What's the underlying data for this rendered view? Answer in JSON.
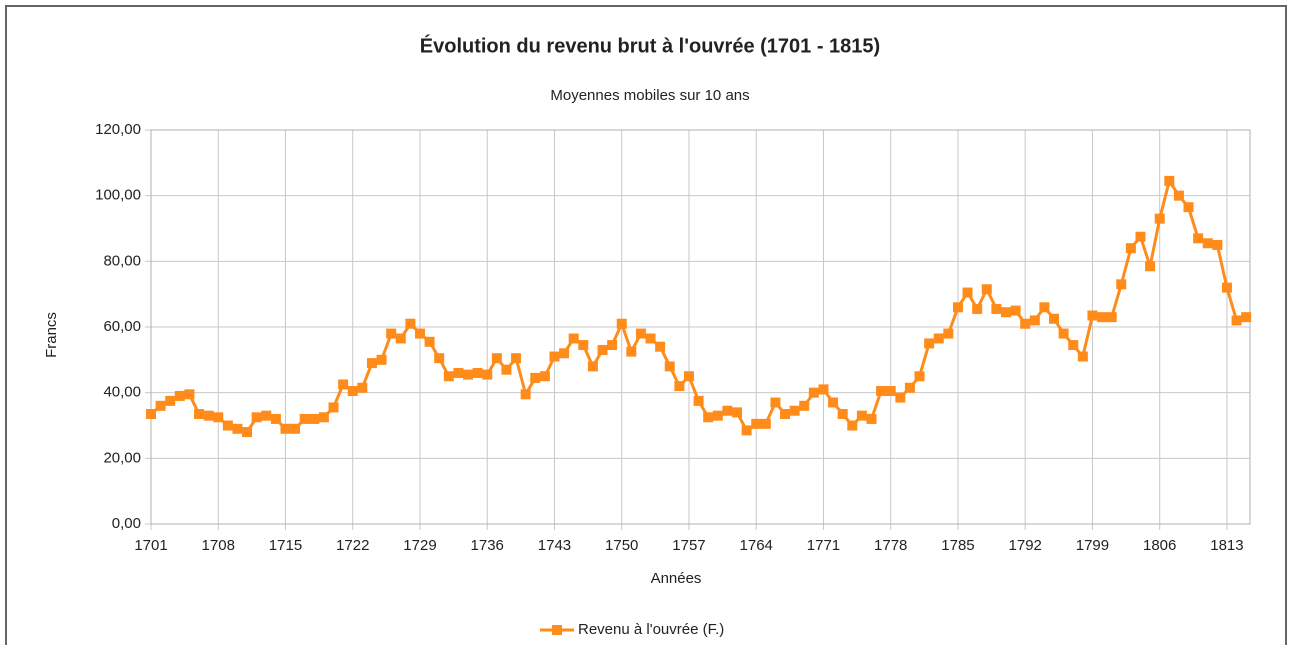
{
  "chart_data": {
    "type": "line",
    "title": "Évolution du revenu brut à l'ouvrée (1701 - 1815)",
    "subtitle": "Moyennes mobiles sur 10 ans",
    "x_label": "Années",
    "y_label": "Francs",
    "x": [
      1701,
      1702,
      1703,
      1704,
      1705,
      1706,
      1707,
      1708,
      1709,
      1710,
      1711,
      1712,
      1713,
      1714,
      1715,
      1716,
      1717,
      1718,
      1719,
      1720,
      1721,
      1722,
      1723,
      1724,
      1725,
      1726,
      1727,
      1728,
      1729,
      1730,
      1731,
      1732,
      1733,
      1734,
      1735,
      1736,
      1737,
      1738,
      1739,
      1740,
      1741,
      1742,
      1743,
      1744,
      1745,
      1746,
      1747,
      1748,
      1749,
      1750,
      1751,
      1752,
      1753,
      1754,
      1755,
      1756,
      1757,
      1758,
      1759,
      1760,
      1761,
      1762,
      1763,
      1764,
      1765,
      1766,
      1767,
      1768,
      1769,
      1770,
      1771,
      1772,
      1773,
      1774,
      1775,
      1776,
      1777,
      1778,
      1779,
      1780,
      1781,
      1782,
      1783,
      1784,
      1785,
      1786,
      1787,
      1788,
      1789,
      1790,
      1791,
      1792,
      1793,
      1794,
      1795,
      1796,
      1797,
      1798,
      1799,
      1800,
      1801,
      1802,
      1803,
      1804,
      1805,
      1806,
      1807,
      1808,
      1809,
      1810,
      1811,
      1812,
      1813,
      1814,
      1815
    ],
    "series": [
      {
        "name": "Revenu à l'ouvrée (F.)",
        "color": "#ff8c1a",
        "values": [
          33.5,
          36,
          37.5,
          39,
          39.5,
          33.5,
          33,
          32.5,
          30,
          29,
          28,
          32.5,
          33,
          32,
          29,
          29,
          32,
          32,
          32.5,
          35.5,
          42.5,
          40.5,
          41.5,
          49,
          50,
          58,
          56.5,
          61,
          58,
          55.5,
          50.5,
          45,
          46,
          45.5,
          46,
          45.5,
          50.5,
          47,
          50.5,
          39.5,
          44.5,
          45,
          51,
          52,
          56.5,
          54.5,
          48,
          53,
          54.5,
          61,
          52.5,
          58,
          56.5,
          54,
          48,
          42,
          45,
          37.5,
          32.5,
          33,
          34.5,
          34,
          28.5,
          30.5,
          30.5,
          37,
          33.5,
          34.5,
          36,
          40,
          41,
          37,
          33.5,
          30,
          33,
          32,
          40.5,
          40.5,
          38.5,
          41.5,
          45,
          55,
          56.5,
          58,
          66,
          70.5,
          65.5,
          71.5,
          65.5,
          64.5,
          65,
          61,
          62,
          66,
          62.5,
          58,
          54.5,
          51,
          63.5,
          63,
          63,
          73,
          84,
          87.5,
          78.5,
          93,
          104.5,
          100,
          96.5,
          87,
          85.5,
          85,
          72,
          62,
          63
        ]
      }
    ],
    "xlim": [
      1701,
      1815.4
    ],
    "xticks": [
      1701,
      1708,
      1715,
      1722,
      1729,
      1736,
      1743,
      1750,
      1757,
      1764,
      1771,
      1778,
      1785,
      1792,
      1799,
      1806,
      1813
    ],
    "ylim": [
      0,
      120
    ],
    "yticks": [
      {
        "value": 0,
        "label": "0,00"
      },
      {
        "value": 20,
        "label": "20,00"
      },
      {
        "value": 40,
        "label": "40,00"
      },
      {
        "value": 60,
        "label": "60,00"
      },
      {
        "value": 80,
        "label": "80,00"
      },
      {
        "value": 100,
        "label": "100,00"
      },
      {
        "value": 120,
        "label": "120,00"
      }
    ],
    "grid": true,
    "legend": "bottom"
  }
}
